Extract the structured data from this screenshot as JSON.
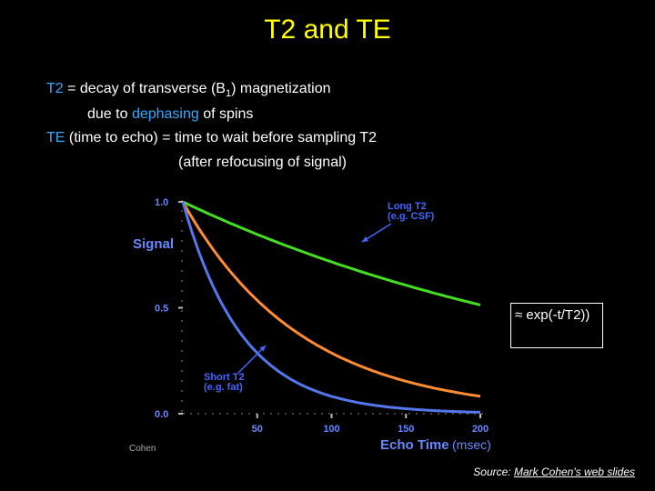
{
  "slide": {
    "title": "T2 and TE",
    "line1": {
      "term": "T2",
      "text_a": " = decay of transverse (B",
      "sub": "1",
      "text_b": ") magnetization"
    },
    "line2": {
      "text_a": "due to ",
      "term": "dephasing",
      "text_b": " of spins"
    },
    "line3": {
      "term": "TE",
      "text": " (time to echo) = time to wait before sampling T2"
    },
    "line4": "(after refocusing of signal)",
    "formula": "≈ exp(-t/T2))",
    "source_prefix": "Source: ",
    "source_link": "Mark Cohen's web slides",
    "credit": "Cohen"
  },
  "colors": {
    "title": "#ffff00",
    "term": "#33aaff",
    "axis_label": "#6688ff",
    "long": "#44dd22",
    "mid": "#ff8c33",
    "short": "#5577ee",
    "annotation": "#4466ff"
  },
  "chart_data": {
    "type": "line",
    "ylabel": "Signal",
    "xlabel": "Echo Time",
    "xlabel_unit": "(msec)",
    "xlim": [
      0,
      200
    ],
    "ylim": [
      0,
      1
    ],
    "x_ticks": [
      50,
      100,
      150,
      200
    ],
    "y_ticks": [
      1.0,
      0.5,
      0.0
    ],
    "y_tick_labels": [
      "1.0",
      "0.5",
      "0.0"
    ],
    "series": [
      {
        "t2": 300,
        "color": "#44dd22"
      },
      {
        "t2": 80,
        "color": "#ff8c33"
      },
      {
        "t2": 40,
        "color": "#5577ee"
      }
    ],
    "annotations": [
      {
        "lines": [
          "Long T2",
          "(e.g. CSF)"
        ]
      },
      {
        "lines": [
          "Short T2",
          "(e.g. fat)"
        ]
      }
    ]
  }
}
